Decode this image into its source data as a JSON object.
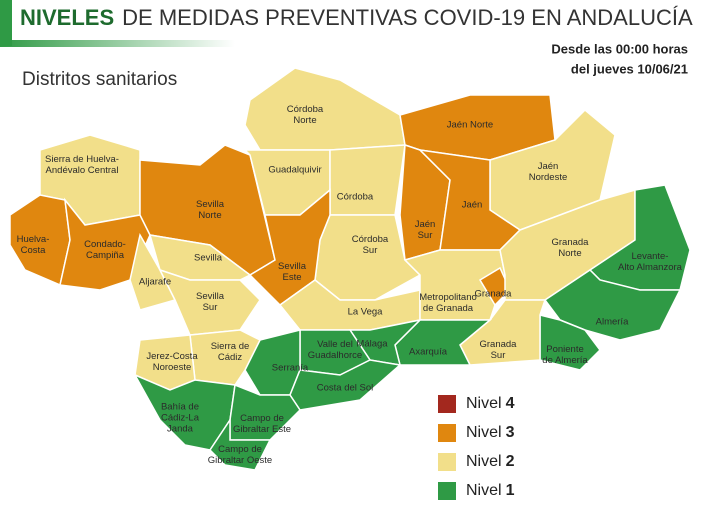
{
  "header": {
    "title_bold": "NIVELES",
    "title_rest": "DE MEDIDAS PREVENTIVAS COVID-19 EN ANDALUCÍA",
    "date_line1": "Desde las 00:00 horas",
    "date_line2": "del jueves 10/06/21",
    "subtitle": "Distritos sanitarios"
  },
  "legend": [
    {
      "label": "Nivel",
      "level": 4,
      "color": "#a3281e"
    },
    {
      "label": "Nivel",
      "level": 3,
      "color": "#e0870f"
    },
    {
      "label": "Nivel",
      "level": 2,
      "color": "#f2df8a"
    },
    {
      "label": "Nivel",
      "level": 1,
      "color": "#2f9a45"
    }
  ],
  "districts": [
    {
      "label": [
        "Córdoba",
        "Norte"
      ],
      "level": 2
    },
    {
      "label": [
        "Sierra de Huelva-",
        "Andévalo Central"
      ],
      "level": 2
    },
    {
      "label": [
        "Huelva-",
        "Costa"
      ],
      "level": 3
    },
    {
      "label": [
        "Condado-",
        "Campiña"
      ],
      "level": 3
    },
    {
      "label": [
        "Sevilla",
        "Norte"
      ],
      "level": 3
    },
    {
      "label": [
        "Guadalquivir"
      ],
      "level": 2
    },
    {
      "label": [
        "Córdoba"
      ],
      "level": 2
    },
    {
      "label": [
        "Jaén Norte"
      ],
      "level": 3
    },
    {
      "label": [
        "Jaén",
        "Nordeste"
      ],
      "level": 2
    },
    {
      "label": [
        "Jaén",
        "Sur"
      ],
      "level": 3
    },
    {
      "label": [
        "Jaén"
      ],
      "level": 3
    },
    {
      "label": [
        "Córdoba",
        "Sur"
      ],
      "level": 2
    },
    {
      "label": [
        "Sevilla",
        "Este"
      ],
      "level": 3
    },
    {
      "label": [
        "Sevilla"
      ],
      "level": 2
    },
    {
      "label": [
        "Aljarafe"
      ],
      "level": 2
    },
    {
      "label": [
        "Sevilla",
        "Sur"
      ],
      "level": 2
    },
    {
      "label": [
        "La Vega"
      ],
      "level": 2
    },
    {
      "label": [
        "Metropolitano",
        "de Granada"
      ],
      "level": 2
    },
    {
      "label": [
        "Granada"
      ],
      "level": 3
    },
    {
      "label": [
        "Granada",
        "Norte"
      ],
      "level": 2
    },
    {
      "label": [
        "Levante-",
        "Alto Almanzora"
      ],
      "level": 1
    },
    {
      "label": [
        "Almería"
      ],
      "level": 1
    },
    {
      "label": [
        "Poniente",
        "de Almería"
      ],
      "level": 1
    },
    {
      "label": [
        "Granada",
        "Sur"
      ],
      "level": 2
    },
    {
      "label": [
        "Axarquía"
      ],
      "level": 1
    },
    {
      "label": [
        "Málaga"
      ],
      "level": 1
    },
    {
      "label": [
        "Valle del",
        "Guadalhorce"
      ],
      "level": 1
    },
    {
      "label": [
        "Serranía"
      ],
      "level": 1
    },
    {
      "label": [
        "Costa del Sol"
      ],
      "level": 1
    },
    {
      "label": [
        "Sierra de",
        "Cádiz"
      ],
      "level": 2
    },
    {
      "label": [
        "Jerez-Costa",
        "Noroeste"
      ],
      "level": 2
    },
    {
      "label": [
        "Bahía de",
        "Cádiz-La",
        "Janda"
      ],
      "level": 1
    },
    {
      "label": [
        "Campo de",
        "Gibraltar Este"
      ],
      "level": 1
    },
    {
      "label": [
        "Campo de",
        "Gibraltar Oeste"
      ],
      "level": 1
    }
  ]
}
